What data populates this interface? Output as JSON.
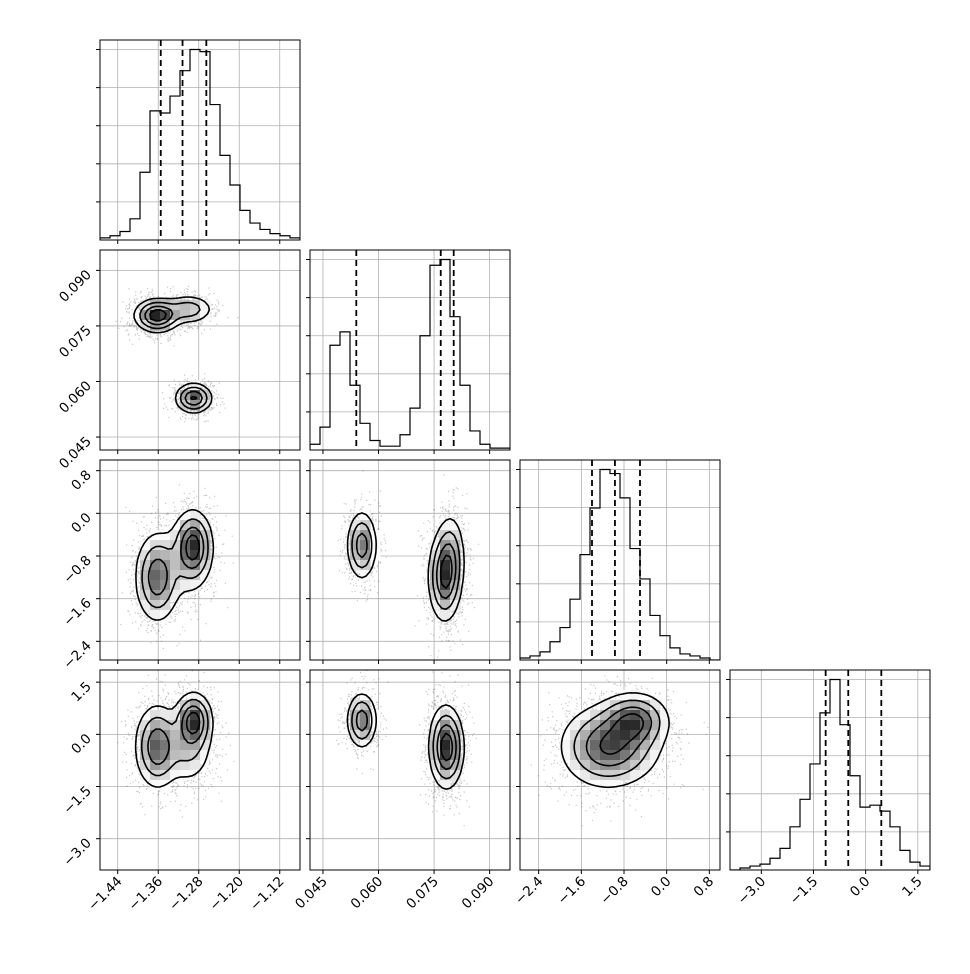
{
  "chart_data": {
    "type": "corner",
    "grid": true,
    "parameters": [
      {
        "ticks": [
          -1.44,
          -1.36,
          -1.28,
          -1.2,
          -1.12
        ],
        "tick_labels": [
          "−1.44",
          "−1.36",
          "−1.28",
          "−1.20",
          "−1.12"
        ],
        "range": [
          -1.475,
          -1.08
        ],
        "quantiles": [
          -1.355,
          -1.312,
          -1.265
        ]
      },
      {
        "ticks": [
          0.045,
          0.06,
          0.075,
          0.09
        ],
        "tick_labels": [
          "0.045",
          "0.060",
          "0.075",
          "0.090"
        ],
        "range": [
          0.0415,
          0.0955
        ],
        "quantiles": [
          0.054,
          0.0768,
          0.0803
        ]
      },
      {
        "ticks": [
          -2.4,
          -1.6,
          -0.8,
          0.0,
          0.8
        ],
        "tick_labels": [
          "−2.4",
          "−1.6",
          "−0.8",
          "0.0",
          "0.8"
        ],
        "range": [
          -2.75,
          1.0
        ],
        "quantiles": [
          -1.4,
          -0.97,
          -0.5
        ]
      },
      {
        "ticks": [
          -3.0,
          -1.5,
          0.0,
          1.5
        ],
        "tick_labels": [
          "−3.0",
          "−1.5",
          "0.0",
          "1.5"
        ],
        "range": [
          -3.9,
          1.85
        ],
        "quantiles": [
          -1.15,
          -0.5,
          0.45
        ]
      }
    ],
    "histograms": [
      [
        1,
        2,
        4,
        10,
        32,
        61,
        60,
        68,
        80,
        90,
        89,
        64,
        40,
        26,
        14,
        8,
        5,
        3,
        2,
        1
      ],
      [
        3,
        12,
        55,
        62,
        34,
        14,
        5,
        2,
        2,
        8,
        22,
        60,
        97,
        100,
        70,
        34,
        10,
        3,
        1,
        1
      ],
      [
        1,
        2,
        4,
        9,
        16,
        30,
        52,
        75,
        94,
        92,
        80,
        55,
        40,
        22,
        12,
        6,
        3,
        2,
        1,
        0
      ],
      [
        0,
        1,
        2,
        3,
        6,
        11,
        22,
        36,
        54,
        80,
        97,
        74,
        48,
        32,
        33,
        30,
        22,
        10,
        4,
        2
      ]
    ],
    "components": [
      {
        "mean": [
          -1.362,
          0.0778,
          -1.2,
          -0.35
        ],
        "sd": [
          0.022,
          0.0022,
          0.42,
          0.6
        ],
        "weight": 0.48
      },
      {
        "mean": [
          -1.3,
          0.0795,
          -0.8,
          -0.4
        ],
        "sd": [
          0.025,
          0.002,
          0.42,
          0.55
        ],
        "weight": 0.22
      },
      {
        "mean": [
          -1.29,
          0.0555,
          -0.6,
          0.4
        ],
        "sd": [
          0.018,
          0.002,
          0.32,
          0.4
        ],
        "weight": 0.3
      }
    ]
  }
}
